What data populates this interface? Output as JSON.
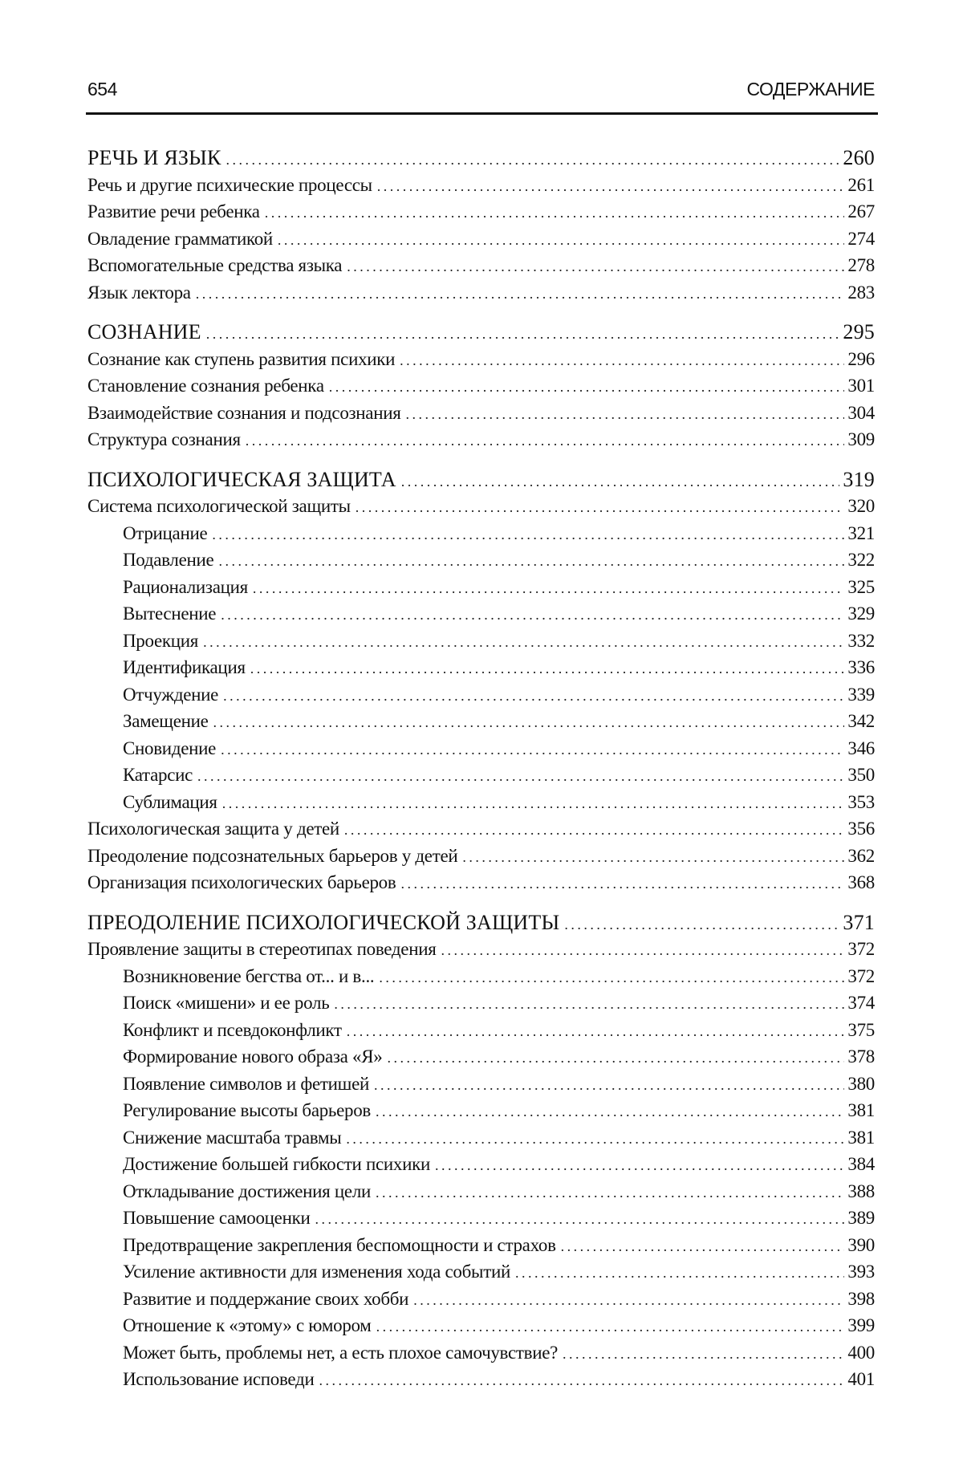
{
  "header": {
    "page_number": "654",
    "running_title": "СОДЕРЖАНИЕ"
  },
  "sections": [
    {
      "title": "РЕЧЬ И ЯЗЫК",
      "page": "260",
      "entries": [
        {
          "title": "Речь и другие психические процессы",
          "page": "261",
          "level": 1
        },
        {
          "title": "Развитие речи ребенка",
          "page": "267",
          "level": 1
        },
        {
          "title": "Овладение грамматикой",
          "page": "274",
          "level": 1
        },
        {
          "title": "Вспомогательные средства языка",
          "page": "278",
          "level": 1
        },
        {
          "title": "Язык лектора",
          "page": "283",
          "level": 1
        }
      ]
    },
    {
      "title": "СОЗНАНИЕ",
      "page": "295",
      "entries": [
        {
          "title": "Сознание как ступень развития психики",
          "page": "296",
          "level": 1
        },
        {
          "title": "Становление сознания ребенка",
          "page": "301",
          "level": 1
        },
        {
          "title": "Взаимодействие сознания и подсознания",
          "page": "304",
          "level": 1
        },
        {
          "title": "Структура сознания",
          "page": "309",
          "level": 1
        }
      ]
    },
    {
      "title": "ПСИХОЛОГИЧЕСКАЯ ЗАЩИТА",
      "page": "319",
      "entries": [
        {
          "title": "Система психологической защиты",
          "page": "320",
          "level": 1
        },
        {
          "title": "Отрицание",
          "page": "321",
          "level": 2
        },
        {
          "title": "Подавление",
          "page": "322",
          "level": 2
        },
        {
          "title": "Рационализация",
          "page": "325",
          "level": 2
        },
        {
          "title": "Вытеснение",
          "page": "329",
          "level": 2
        },
        {
          "title": "Проекция",
          "page": "332",
          "level": 2
        },
        {
          "title": "Идентификация",
          "page": "336",
          "level": 2
        },
        {
          "title": "Отчуждение",
          "page": "339",
          "level": 2
        },
        {
          "title": "Замещение",
          "page": "342",
          "level": 2
        },
        {
          "title": "Сновидение",
          "page": "346",
          "level": 2
        },
        {
          "title": "Катарсис",
          "page": "350",
          "level": 2
        },
        {
          "title": "Сублимация",
          "page": "353",
          "level": 2
        },
        {
          "title": "Психологическая защита у детей",
          "page": "356",
          "level": 1
        },
        {
          "title": "Преодоление подсознательных барьеров у детей",
          "page": "362",
          "level": 1
        },
        {
          "title": "Организация психологических барьеров",
          "page": "368",
          "level": 1
        }
      ]
    },
    {
      "title": "ПРЕОДОЛЕНИЕ ПСИХОЛОГИЧЕСКОЙ ЗАЩИТЫ",
      "page": "371",
      "entries": [
        {
          "title": "Проявление защиты в стереотипах поведения",
          "page": "372",
          "level": 1
        },
        {
          "title": "Возникновение бегства от... и в...",
          "page": "372",
          "level": 2
        },
        {
          "title": "Поиск «мишени» и ее роль",
          "page": "374",
          "level": 2
        },
        {
          "title": "Конфликт и псевдоконфликт",
          "page": "375",
          "level": 2
        },
        {
          "title": "Формирование нового образа «Я»",
          "page": "378",
          "level": 2
        },
        {
          "title": "Появление символов и фетишей",
          "page": "380",
          "level": 2
        },
        {
          "title": "Регулирование высоты барьеров",
          "page": "381",
          "level": 2
        },
        {
          "title": "Снижение масштаба травмы",
          "page": "381",
          "level": 2
        },
        {
          "title": "Достижение большей гибкости психики",
          "page": "384",
          "level": 2
        },
        {
          "title": "Откладывание достижения цели",
          "page": "388",
          "level": 2
        },
        {
          "title": "Повышение самооценки",
          "page": "389",
          "level": 2
        },
        {
          "title": "Предотвращение закрепления беспомощности и страхов",
          "page": "390",
          "level": 2
        },
        {
          "title": "Усиление активности для изменения хода событий",
          "page": "393",
          "level": 2
        },
        {
          "title": "Развитие и поддержание своих хобби",
          "page": "398",
          "level": 2
        },
        {
          "title": "Отношение к «этому» с юмором",
          "page": "399",
          "level": 2
        },
        {
          "title": "Может быть, проблемы нет, а есть плохое самочувствие?",
          "page": "400",
          "level": 2
        },
        {
          "title": "Использование исповеди",
          "page": "401",
          "level": 2
        }
      ]
    }
  ]
}
